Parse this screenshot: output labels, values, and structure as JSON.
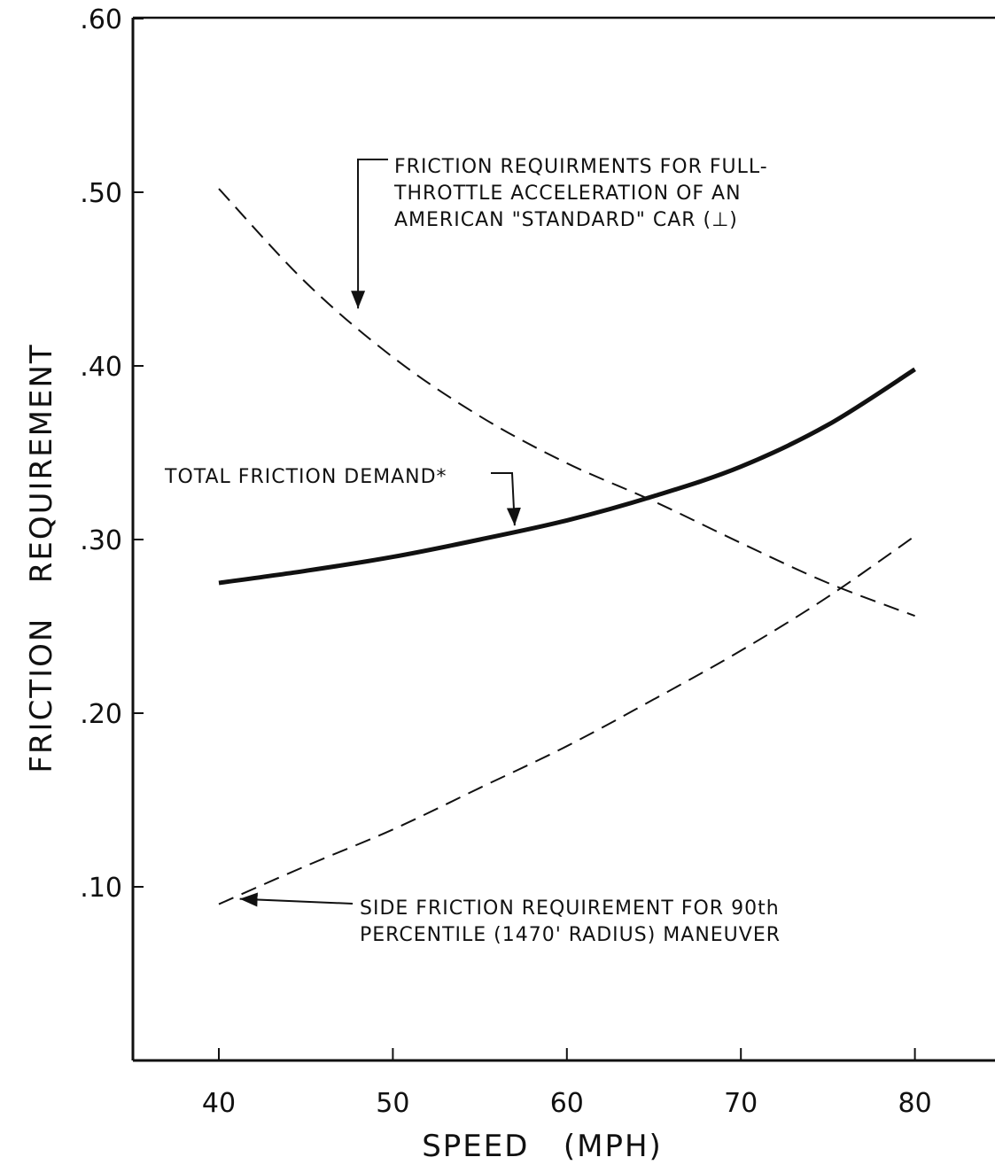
{
  "chart_data": {
    "type": "line",
    "xlabel": "SPEED   (MPH)",
    "ylabel": "FRICTION   REQUIREMENT",
    "xlim": [
      35,
      85
    ],
    "ylim": [
      0,
      0.6
    ],
    "x_ticks": [
      40,
      50,
      60,
      70,
      80
    ],
    "x_tick_labels": [
      "40",
      "50",
      "60",
      "70",
      "80"
    ],
    "y_ticks": [
      0.1,
      0.2,
      0.3,
      0.4,
      0.5,
      0.6
    ],
    "y_tick_labels": [
      ".10",
      ".20",
      ".30",
      ".40",
      ".50",
      ".60"
    ],
    "grid": false,
    "series": [
      {
        "style": "solid",
        "x": [
          40,
          45,
          50,
          55,
          60,
          65,
          70,
          75,
          80
        ],
        "values": [
          0.275,
          0.282,
          0.29,
          0.3,
          0.311,
          0.325,
          0.342,
          0.366,
          0.398
        ]
      },
      {
        "style": "dashed",
        "x": [
          40,
          45,
          50,
          55,
          60,
          65,
          70,
          75,
          80
        ],
        "values": [
          0.502,
          0.448,
          0.405,
          0.371,
          0.344,
          0.322,
          0.298,
          0.275,
          0.256
        ]
      },
      {
        "style": "dashed",
        "x": [
          40,
          45,
          50,
          55,
          60,
          65,
          70,
          75,
          80
        ],
        "values": [
          0.09,
          0.112,
          0.133,
          0.157,
          0.181,
          0.208,
          0.236,
          0.267,
          0.302
        ]
      }
    ],
    "annotations": [
      {
        "lines": [
          "FRICTION  REQUIRMENTS  FOR  FULL-",
          "THROTTLE   ACCELERATION   OF  AN",
          "AMERICAN  \"STANDARD\"  CAR  (⊥)"
        ],
        "points_to": [
          48,
          0.43
        ]
      },
      {
        "lines": [
          "TOTAL  FRICTION  DEMAND*"
        ],
        "points_to": [
          57,
          0.305
        ]
      },
      {
        "lines": [
          "SIDE   FRICTION   REQUIREMENT   FOR   90th",
          "PERCENTILE    (1470'  RADIUS)    MANEUVER"
        ],
        "points_to": [
          41,
          0.092
        ]
      }
    ]
  }
}
